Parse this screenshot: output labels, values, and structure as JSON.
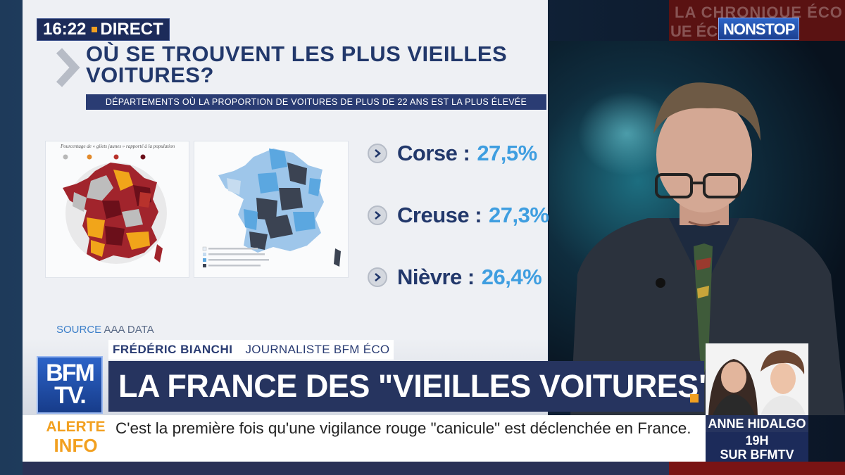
{
  "clock": {
    "time": "16:22",
    "live_label": "DIRECT"
  },
  "channel": {
    "logo_line1": "BFM",
    "logo_line2": "TV.",
    "nonstop_label": "NONSTOP",
    "background_text_1": "LA CHRONIQUE ÉCO",
    "background_text_2": "UE ÉCO",
    "brand_color": "#26345F",
    "accent_color": "#F2A020"
  },
  "infographic": {
    "title": "OÙ SE TROUVENT LES PLUS VIEILLES VOITURES?",
    "subtitle": "DÉPARTEMENTS OÙ LA PROPORTION DE VOITURES DE PLUS DE 22 ANS EST LA PLUS ÉLEVÉE",
    "map_left_caption": "Pourcentage de « gilets jaunes » rapporté à la population",
    "rankings": [
      {
        "name": "Corse :",
        "value": "27,5%"
      },
      {
        "name": "Creuse :",
        "value": "27,3%"
      },
      {
        "name": "Nièvre :",
        "value": "26,4%"
      }
    ],
    "source_label": "SOURCE",
    "source_value": "AAA DATA"
  },
  "lower_third": {
    "presenter_name": "FRÉDÉRIC BIANCHI",
    "presenter_role": "JOURNALISTE BFM ÉCO",
    "headline": "LA FRANCE DES \"VIEILLES VOITURES\""
  },
  "ticker": {
    "label_line1": "ALERTE",
    "label_line2": "INFO",
    "text": "C'est la première fois qu'une vigilance rouge \"canicule\" est déclenchée en France."
  },
  "promo": {
    "name": "ANNE HIDALGO",
    "time": "19H",
    "channel": "SUR BFMTV"
  }
}
